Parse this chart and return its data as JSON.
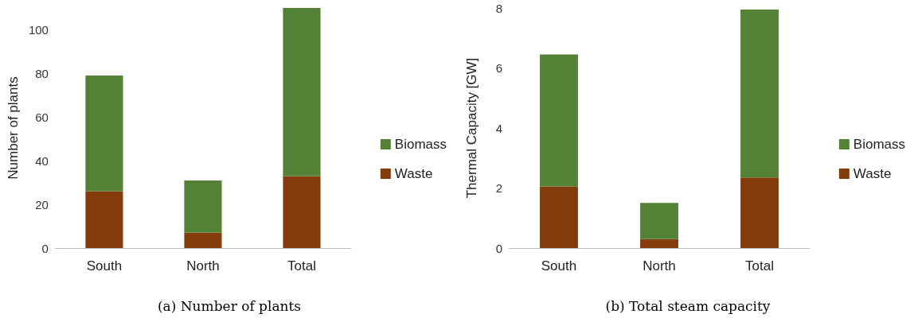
{
  "chart_data": [
    {
      "type": "bar",
      "title": "(a) Number of plants",
      "ylabel": "Number of plants",
      "categories": [
        "South",
        "North",
        "Total"
      ],
      "stacked": true,
      "legend": "right",
      "ylim": [
        0,
        110
      ],
      "yticks": [
        0,
        20,
        40,
        60,
        80,
        100
      ],
      "series": [
        {
          "name": "Waste",
          "color": "#843c0c",
          "values": [
            26,
            7,
            33
          ]
        },
        {
          "name": "Biomass",
          "color": "#538135",
          "values": [
            53,
            24,
            77
          ]
        }
      ]
    },
    {
      "type": "bar",
      "title": "(b) Total steam capacity",
      "ylabel": "Thermal Capacity [GW]",
      "categories": [
        "South",
        "North",
        "Total"
      ],
      "stacked": true,
      "legend": "right",
      "ylim": [
        0,
        8
      ],
      "yticks": [
        0,
        2,
        4,
        6,
        8
      ],
      "series": [
        {
          "name": "Waste",
          "color": "#843c0c",
          "values": [
            2.05,
            0.3,
            2.35
          ]
        },
        {
          "name": "Biomass",
          "color": "#538135",
          "values": [
            4.4,
            1.2,
            5.6
          ]
        }
      ]
    }
  ]
}
